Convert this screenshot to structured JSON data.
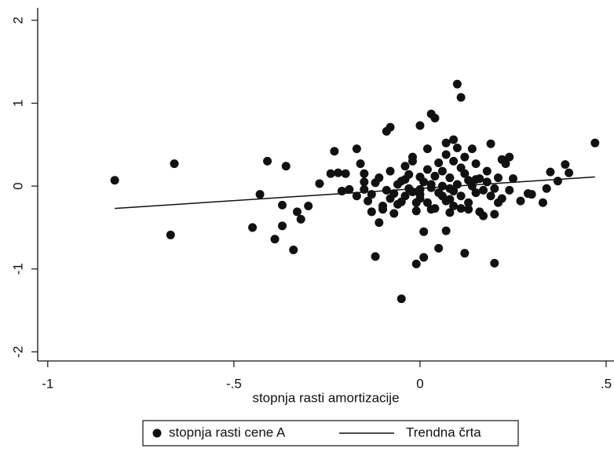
{
  "chart_data": {
    "type": "scatter",
    "x_label": "stopnja rasti amortizacije",
    "xlim": [
      -1.027,
      0.521
    ],
    "ylim": [
      -2.11,
      2.15
    ],
    "xticks": [
      {
        "value": -1,
        "label": "-1"
      },
      {
        "value": -0.5,
        "label": "-.5"
      },
      0,
      {
        "value": 0.5,
        "label": ".5"
      }
    ],
    "yticks": [
      -2,
      -1,
      0,
      1,
      2
    ],
    "grid": false,
    "legend": "bottom",
    "series": [
      {
        "name": "stopnja rasti cene A",
        "type": "scatter",
        "color": "#111111",
        "x": [
          -0.82,
          -0.66,
          -0.67,
          -0.41,
          -0.43,
          -0.45,
          -0.39,
          -0.34,
          -0.37,
          -0.37,
          -0.36,
          -0.33,
          -0.32,
          -0.27,
          -0.3,
          -0.23,
          -0.24,
          -0.22,
          -0.2,
          -0.17,
          -0.21,
          -0.19,
          -0.16,
          -0.15,
          -0.15,
          -0.14,
          -0.13,
          -0.12,
          -0.12,
          -0.11,
          -0.1,
          -0.09,
          -0.08,
          -0.08,
          -0.07,
          -0.07,
          -0.05,
          -0.05,
          -0.04,
          -0.04,
          -0.03,
          -0.02,
          -0.01,
          -0.01,
          0.0,
          0.0,
          0.0,
          0.01,
          0.01,
          0.02,
          0.03,
          0.03,
          0.04,
          0.04,
          0.05,
          0.06,
          0.07,
          0.07,
          0.08,
          0.08,
          0.09,
          0.09,
          0.1,
          0.1,
          0.11,
          0.11,
          0.12,
          0.12,
          0.13,
          0.14,
          0.15,
          0.15,
          0.16,
          0.16,
          0.17,
          0.18,
          0.19,
          0.19,
          0.2,
          0.2,
          0.2,
          0.21,
          0.22,
          0.23,
          0.24,
          0.25,
          0.27,
          0.29,
          0.3,
          0.33,
          0.34,
          0.35,
          0.37,
          0.39,
          0.4,
          0.47,
          -0.09,
          -0.06,
          -0.04,
          -0.02,
          0.0,
          0.01,
          0.02,
          0.03,
          0.04,
          0.05,
          0.06,
          0.07,
          0.08,
          0.09,
          0.1,
          0.11,
          0.12,
          0.13,
          0.14,
          0.15,
          -0.11,
          -0.13,
          -0.1,
          -0.08,
          -0.06,
          -0.03,
          -0.01,
          0.02,
          0.05,
          0.06,
          0.09,
          0.11,
          0.17,
          0.18,
          0.21,
          0.22,
          0.24,
          -0.15,
          -0.17,
          -0.05,
          0.0,
          0.03,
          0.08,
          0.13,
          -0.02,
          0.07
        ],
        "values": [
          0.07,
          0.27,
          -0.59,
          0.3,
          -0.1,
          -0.5,
          -0.64,
          -0.77,
          -0.23,
          -0.48,
          0.24,
          -0.31,
          -0.4,
          0.03,
          -0.24,
          0.42,
          0.15,
          0.16,
          0.15,
          0.45,
          -0.06,
          -0.04,
          0.27,
          0.15,
          -0.04,
          -0.18,
          -0.31,
          -0.85,
          0.04,
          -0.44,
          -0.24,
          0.66,
          0.71,
          0.18,
          -0.09,
          -0.33,
          -0.19,
          -1.36,
          0.08,
          0.24,
          -0.03,
          0.3,
          -0.2,
          -0.94,
          0.11,
          0.73,
          -0.1,
          -0.55,
          -0.86,
          0.45,
          0.02,
          0.87,
          0.82,
          -0.27,
          -0.75,
          0.18,
          -0.54,
          0.52,
          -0.03,
          -0.16,
          0.56,
          0.3,
          1.23,
          0.46,
          -0.27,
          1.07,
          0.35,
          -0.81,
          0.07,
          0.45,
          -0.08,
          0.27,
          -0.31,
          0.09,
          -0.36,
          0.18,
          0.51,
          -0.12,
          -0.93,
          -0.34,
          -0.03,
          -0.2,
          0.32,
          0.27,
          0.35,
          0.09,
          -0.18,
          -0.09,
          -0.1,
          -0.2,
          -0.03,
          0.17,
          0.06,
          0.26,
          0.16,
          0.52,
          -0.05,
          0.02,
          -0.12,
          -0.07,
          -0.15,
          0.05,
          -0.2,
          -0.02,
          0.12,
          -0.08,
          0.0,
          -0.18,
          0.1,
          -0.06,
          0.02,
          -0.12,
          0.15,
          -0.2,
          0.0,
          0.08,
          0.1,
          -0.1,
          -0.28,
          -0.15,
          -0.22,
          0.14,
          -0.3,
          0.2,
          0.28,
          -0.12,
          -0.24,
          0.22,
          -0.05,
          0.05,
          0.1,
          -0.15,
          -0.05,
          0.05,
          -0.12,
          0.06,
          -0.04,
          -0.28,
          -0.32,
          -0.28,
          0.35,
          0.38
        ]
      },
      {
        "name": "Trendna črta",
        "type": "line",
        "color": "#111111",
        "x": [
          -0.82,
          0.47
        ],
        "values": [
          -0.27,
          0.11
        ]
      }
    ]
  }
}
